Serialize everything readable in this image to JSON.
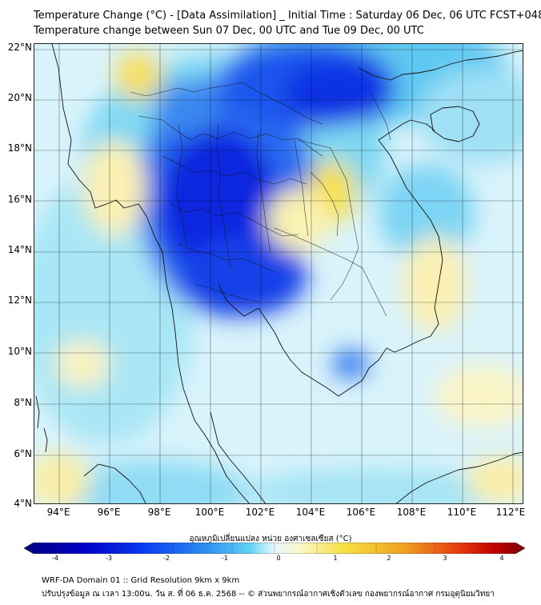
{
  "title_line1": "Temperature Change (°C) - [Data Assimilation] _ Initial Time : Saturday 06 Dec, 06 UTC FCST+048",
  "title_line2": "Temperature change between Sun 07 Dec, 00 UTC and Tue 09 Dec, 00 UTC",
  "map": {
    "lat_labels": [
      "22°N",
      "20°N",
      "18°N",
      "16°N",
      "14°N",
      "12°N",
      "10°N",
      "8°N",
      "6°N",
      "4°N"
    ],
    "lon_labels": [
      "94°E",
      "96°E",
      "98°E",
      "100°E",
      "102°E",
      "104°E",
      "106°E",
      "108°E",
      "110°E",
      "112°E"
    ],
    "background_color": "#d9f3fb"
  },
  "colorbar": {
    "title": "อุณหภูมิเปลี่ยนแปลง หน่วย องศาเซลเซียส (°C)",
    "ticks": [
      "-4",
      "-3",
      "-2",
      "-1",
      "0",
      "1",
      "2",
      "3",
      "4"
    ],
    "colors": [
      "#00007f",
      "#0000c8",
      "#0a3cf0",
      "#2a8cf0",
      "#5fd2f5",
      "#d8f4fb",
      "#fbf7c8",
      "#f7e040",
      "#f0a020",
      "#e84010",
      "#c00000",
      "#7a0000"
    ]
  },
  "footer": {
    "line1": "WRF-DA Domain 01 :: Grid Resolution 9km x 9km",
    "line2": "ปรับปรุงข้อมูล ณ เวลา 13:00น. วัน ส. ที่ 06 ธ.ค. 2568 -- © ส่วนพยากรณ์อากาศเชิงตัวเลข กองพยากรณ์อากาศ กรมอุตุนิยมวิทยา"
  }
}
